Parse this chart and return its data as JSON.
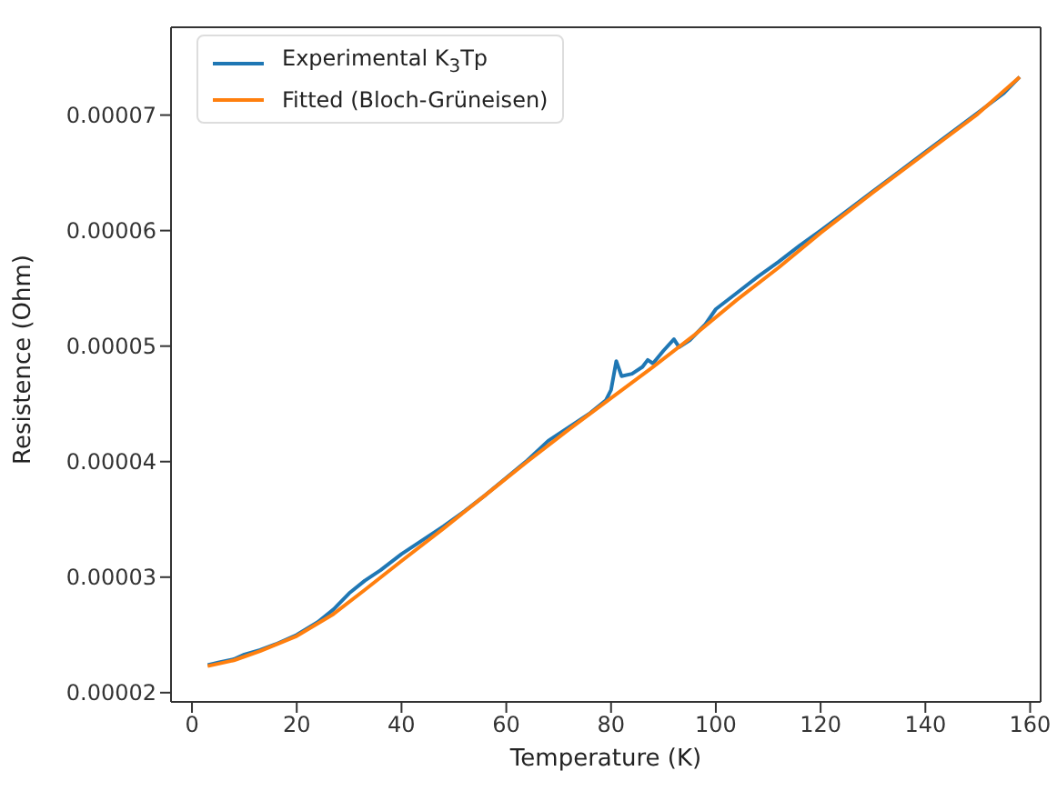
{
  "chart_data": {
    "type": "line",
    "xlabel": "Temperature (K)",
    "ylabel": "Resistence (Ohm)",
    "legend": "top left",
    "grid": false,
    "marker": "none",
    "line_style": "solid",
    "xlim": [
      -4,
      162
    ],
    "xticks": [
      0,
      20,
      40,
      60,
      80,
      100,
      120,
      140,
      160
    ],
    "ylim": [
      1.92e-05,
      7.76e-05
    ],
    "yticks": [
      {
        "value": 2e-05,
        "label": "0.00002"
      },
      {
        "value": 3e-05,
        "label": "0.00003"
      },
      {
        "value": 4e-05,
        "label": "0.00004"
      },
      {
        "value": 5e-05,
        "label": "0.00005"
      },
      {
        "value": 6e-05,
        "label": "0.00006"
      },
      {
        "value": 7e-05,
        "label": "0.00007"
      }
    ],
    "series": [
      {
        "name": "Experimental K$_{3}$Tp",
        "color": "#1f77b4",
        "x": [
          3,
          5,
          8,
          10,
          13,
          16,
          20,
          24,
          27,
          30,
          33,
          36,
          40,
          44,
          48,
          52,
          56,
          60,
          64,
          68,
          72,
          76,
          79,
          80,
          81,
          82,
          84,
          86,
          87,
          88,
          90,
          92,
          93,
          95,
          98,
          100,
          104,
          108,
          112,
          116,
          120,
          125,
          130,
          135,
          140,
          145,
          150,
          155,
          158
        ],
        "values": [
          2.24e-05,
          2.26e-05,
          2.29e-05,
          2.33e-05,
          2.37e-05,
          2.42e-05,
          2.5e-05,
          2.61e-05,
          2.72e-05,
          2.86e-05,
          2.97e-05,
          3.06e-05,
          3.2e-05,
          3.32e-05,
          3.44e-05,
          3.57e-05,
          3.71e-05,
          3.86e-05,
          4.01e-05,
          4.18e-05,
          4.3e-05,
          4.42e-05,
          4.53e-05,
          4.62e-05,
          4.87e-05,
          4.74e-05,
          4.76e-05,
          4.82e-05,
          4.88e-05,
          4.85e-05,
          4.96e-05,
          5.06e-05,
          4.99e-05,
          5.05e-05,
          5.19e-05,
          5.32e-05,
          5.46e-05,
          5.6e-05,
          5.73e-05,
          5.87e-05,
          6e-05,
          6.17e-05,
          6.34e-05,
          6.51e-05,
          6.68e-05,
          6.85e-05,
          7.02e-05,
          7.19e-05,
          7.33e-05
        ]
      },
      {
        "name": "Fitted (Bloch-Grüneisen)",
        "color": "#ff7f0e",
        "x": [
          3,
          8,
          13,
          20,
          27,
          33,
          40,
          48,
          56,
          64,
          72,
          80,
          88,
          96,
          104,
          112,
          120,
          130,
          140,
          150,
          158
        ],
        "values": [
          2.23e-05,
          2.28e-05,
          2.36e-05,
          2.49e-05,
          2.68e-05,
          2.89e-05,
          3.14e-05,
          3.42e-05,
          3.71e-05,
          4e-05,
          4.28e-05,
          4.55e-05,
          4.82e-05,
          5.1e-05,
          5.4e-05,
          5.68e-05,
          5.98e-05,
          6.33e-05,
          6.67e-05,
          7.01e-05,
          7.33e-05
        ]
      }
    ]
  }
}
